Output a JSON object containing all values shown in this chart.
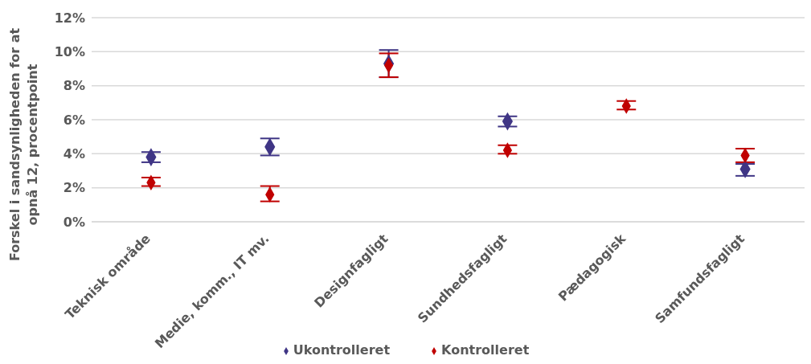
{
  "chart_data": {
    "type": "scatter",
    "ylabel": "Forskel i sandsynligheden for at opnå 12, procentpoint",
    "categories": [
      "Teknisk område",
      "Medie, komm., IT mv.",
      "Designfagligt",
      "Sundhedsfagligt",
      "Pædagogisk",
      "Samfundsfagligt"
    ],
    "series": [
      {
        "name": "Ukontrolleret",
        "color": "#3f3585",
        "values": [
          3.8,
          4.4,
          9.3,
          5.9,
          null,
          3.1
        ],
        "errors": [
          [
            3.5,
            4.1
          ],
          [
            3.9,
            4.9
          ],
          [
            8.5,
            10.1
          ],
          [
            5.6,
            6.2
          ],
          null,
          [
            2.7,
            3.4
          ]
        ]
      },
      {
        "name": "Kontrolleret",
        "color": "#c00000",
        "values": [
          2.3,
          1.6,
          9.2,
          4.2,
          6.8,
          3.9
        ],
        "errors": [
          [
            2.1,
            2.6
          ],
          [
            1.2,
            2.1
          ],
          [
            8.5,
            9.9
          ],
          [
            4.0,
            4.5
          ],
          [
            6.6,
            7.1
          ],
          [
            3.5,
            4.3
          ]
        ]
      }
    ],
    "ylim": [
      0,
      12
    ],
    "yticks": [
      {
        "value": 0,
        "label": "0%"
      },
      {
        "value": 2,
        "label": "2%"
      },
      {
        "value": 4,
        "label": "4%"
      },
      {
        "value": 6,
        "label": "6%"
      },
      {
        "value": 8,
        "label": "8%"
      },
      {
        "value": 10,
        "label": "10%"
      },
      {
        "value": 12,
        "label": "12%"
      }
    ],
    "grid": "y",
    "legend": "bottom",
    "marker": "diamond"
  }
}
